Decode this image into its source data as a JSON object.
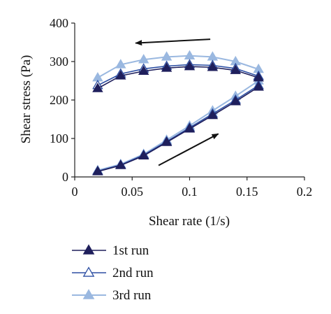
{
  "chart_data": {
    "type": "line",
    "xlabel": "Shear rate (1/s)",
    "ylabel": "Shear stress (Pa)",
    "xlim": [
      0,
      0.2
    ],
    "ylim": [
      0,
      400
    ],
    "xticks": [
      "0",
      "0.05",
      "0.1",
      "0.15",
      "0.2"
    ],
    "yticks": [
      "0",
      "100",
      "200",
      "300",
      "400"
    ],
    "grid": false,
    "legend_position": "bottom",
    "x": [
      0.02,
      0.04,
      0.06,
      0.08,
      0.1,
      0.12,
      0.14,
      0.16
    ],
    "series": [
      {
        "name": "1st run",
        "color": "#1f1f5c",
        "marker": "filled-triangle",
        "up": [
          14,
          30,
          55,
          90,
          125,
          160,
          196,
          234
        ],
        "down": [
          230,
          263,
          275,
          283,
          287,
          285,
          277,
          258
        ]
      },
      {
        "name": "2nd run",
        "color": "#2d4fa3",
        "marker": "open-triangle",
        "up": [
          15,
          31,
          57,
          92,
          128,
          164,
          200,
          238
        ],
        "down": [
          238,
          268,
          281,
          288,
          292,
          290,
          282,
          262
        ]
      },
      {
        "name": "3rd run",
        "color": "#9ab8e0",
        "marker": "light-triangle",
        "up": [
          17,
          33,
          59,
          96,
          133,
          172,
          210,
          250
        ],
        "down": [
          258,
          292,
          305,
          312,
          315,
          312,
          300,
          280
        ]
      }
    ],
    "annotations": [
      {
        "type": "arrow",
        "direction": "left",
        "from": [
          0.118,
          358
        ],
        "to": [
          0.053,
          348
        ]
      },
      {
        "type": "arrow",
        "direction": "up-right",
        "from": [
          0.073,
          30
        ],
        "to": [
          0.125,
          112
        ]
      }
    ]
  }
}
